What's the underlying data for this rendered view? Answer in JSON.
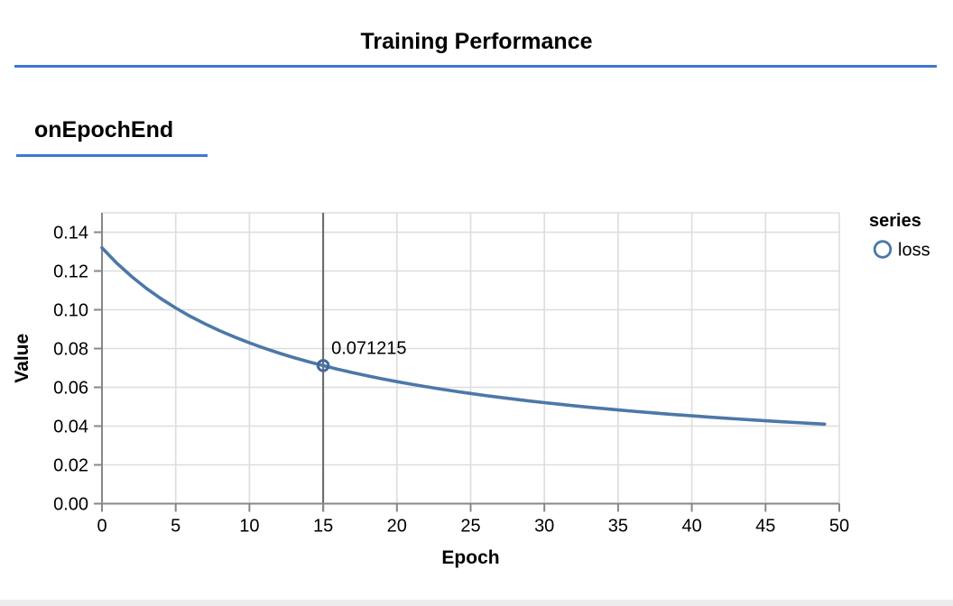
{
  "page": {
    "title": "Training Performance",
    "section_label": "onEpochEnd",
    "accent_color": "#3e76d3",
    "bottom_strip_color": "#ececec"
  },
  "chart_data": {
    "type": "line",
    "title": "",
    "xlabel": "Epoch",
    "ylabel": "Value",
    "xlim": [
      0,
      50
    ],
    "ylim": [
      0,
      0.15
    ],
    "grid": true,
    "x_ticks": [
      {
        "value": 0,
        "label": "0"
      },
      {
        "value": 5,
        "label": "5"
      },
      {
        "value": 10,
        "label": "10"
      },
      {
        "value": 15,
        "label": "15"
      },
      {
        "value": 20,
        "label": "20"
      },
      {
        "value": 25,
        "label": "25"
      },
      {
        "value": 30,
        "label": "30"
      },
      {
        "value": 35,
        "label": "35"
      },
      {
        "value": 40,
        "label": "40"
      },
      {
        "value": 45,
        "label": "45"
      },
      {
        "value": 50,
        "label": "50"
      }
    ],
    "y_ticks": [
      {
        "value": 0.0,
        "label": "0.00"
      },
      {
        "value": 0.02,
        "label": "0.02"
      },
      {
        "value": 0.04,
        "label": "0.04"
      },
      {
        "value": 0.06,
        "label": "0.06"
      },
      {
        "value": 0.08,
        "label": "0.08"
      },
      {
        "value": 0.1,
        "label": "0.10"
      },
      {
        "value": 0.12,
        "label": "0.12"
      },
      {
        "value": 0.14,
        "label": "0.14"
      }
    ],
    "legend": {
      "position": "top-right",
      "title": "series",
      "entries": [
        {
          "label": "loss",
          "symbol": "open-circle",
          "color": "#4c78a8"
        }
      ]
    },
    "series": [
      {
        "name": "loss",
        "color": "#4c78a8",
        "x": [
          0,
          1,
          2,
          3,
          4,
          5,
          6,
          7,
          8,
          9,
          10,
          11,
          12,
          13,
          14,
          15,
          16,
          17,
          18,
          19,
          20,
          21,
          22,
          23,
          24,
          25,
          26,
          27,
          28,
          29,
          30,
          31,
          32,
          33,
          34,
          35,
          36,
          37,
          38,
          39,
          40,
          41,
          42,
          43,
          44,
          45,
          46,
          47,
          48,
          49
        ],
        "values": [
          0.13199,
          0.12409,
          0.11719,
          0.11112,
          0.10573,
          0.10091,
          0.09658,
          0.09268,
          0.08912,
          0.08589,
          0.08292,
          0.0802,
          0.07769,
          0.07536,
          0.0732,
          0.071215,
          0.06932,
          0.06757,
          0.06593,
          0.06439,
          0.06294,
          0.06157,
          0.06028,
          0.05907,
          0.05791,
          0.05682,
          0.05578,
          0.05479,
          0.05385,
          0.05295,
          0.0521,
          0.05128,
          0.0505,
          0.04974,
          0.04903,
          0.04834,
          0.04768,
          0.04705,
          0.04644,
          0.04585,
          0.04528,
          0.04474,
          0.04422,
          0.04371,
          0.04322,
          0.04275,
          0.04229,
          0.04185,
          0.04143,
          0.04101
        ]
      }
    ],
    "highlight": {
      "series": "loss",
      "x": 15,
      "value": 0.071215,
      "label": "0.071215",
      "rule_color": "#666666",
      "marker_stroke": "#44699a"
    },
    "colors": {
      "grid": "#dddddd",
      "axis": "#888888",
      "tick_label": "#000000"
    }
  }
}
